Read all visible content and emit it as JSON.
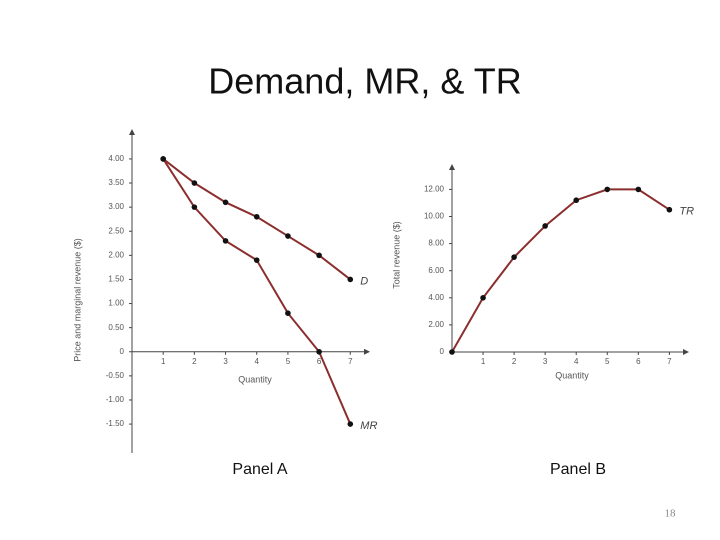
{
  "title": "Demand, MR, & TR",
  "page_number": "18",
  "chart_data": [
    {
      "type": "line",
      "title": "Panel A",
      "x_label": "Quantity",
      "y_label": "Price and marginal revenue ($)",
      "x": [
        1,
        2,
        3,
        4,
        5,
        6,
        7
      ],
      "series": [
        {
          "name": "D",
          "color": "#8b2e2e",
          "values": [
            4.0,
            3.5,
            3.1,
            2.8,
            2.4,
            2.0,
            1.5
          ]
        },
        {
          "name": "MR",
          "color": "#8b2e2e",
          "values": [
            4.0,
            3.0,
            2.3,
            1.9,
            0.8,
            0,
            -1.5
          ]
        }
      ],
      "xlim": [
        0,
        7.6
      ],
      "ylim": [
        -2.1,
        4.6
      ],
      "xticks": [
        1,
        2,
        3,
        4,
        5,
        6,
        7
      ],
      "yticks": [
        {
          "value": 4,
          "label": "4.00"
        },
        {
          "value": 3.5,
          "label": "3.50"
        },
        {
          "value": 3,
          "label": "3.00"
        },
        {
          "value": 2.5,
          "label": "2.50"
        },
        {
          "value": 2,
          "label": "2.00"
        },
        {
          "value": 1.5,
          "label": "1.50"
        },
        {
          "value": 1,
          "label": "1.00"
        },
        {
          "value": 0.5,
          "label": "0.50"
        },
        0,
        {
          "value": -0.5,
          "label": "-0.50"
        },
        {
          "value": -1,
          "label": "-1.00"
        },
        {
          "value": -1.5,
          "label": "-1.50"
        }
      ]
    },
    {
      "type": "line",
      "title": "Panel B",
      "x_label": "Quantity",
      "y_label": "Total revenue ($)",
      "x": [
        0,
        1,
        2,
        3,
        4,
        5,
        6,
        7
      ],
      "series": [
        {
          "name": "TR",
          "color": "#8b2e2e",
          "values": [
            0,
            4.0,
            7.0,
            9.3,
            11.2,
            12.0,
            12.0,
            10.5
          ]
        }
      ],
      "xlim": [
        0,
        7.6
      ],
      "ylim": [
        0,
        13.8
      ],
      "xticks": [
        1,
        2,
        3,
        4,
        5,
        6,
        7
      ],
      "yticks": [
        0,
        {
          "value": 2,
          "label": "2.00"
        },
        {
          "value": 4,
          "label": "4.00"
        },
        {
          "value": 6,
          "label": "6.00"
        },
        {
          "value": 8,
          "label": "8.00"
        },
        {
          "value": 10,
          "label": "10.00"
        },
        {
          "value": 12,
          "label": "12.00"
        }
      ]
    }
  ]
}
